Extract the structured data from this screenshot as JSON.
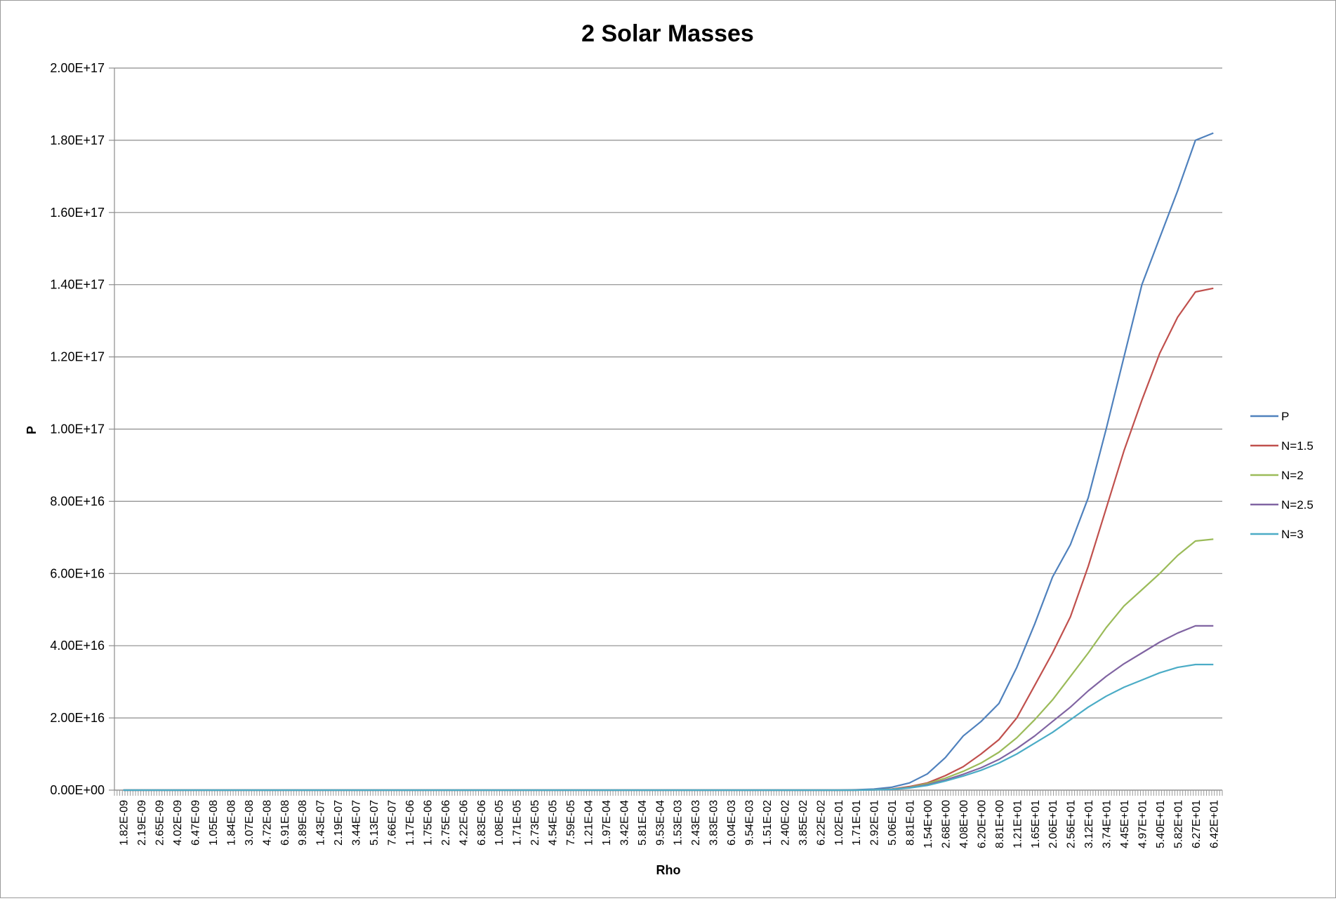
{
  "chart_data": {
    "type": "line",
    "title": "2 Solar Masses",
    "xlabel": "Rho",
    "ylabel": "P",
    "ylim": [
      0,
      2e+17
    ],
    "y_ticks": [
      0,
      2e+16,
      4e+16,
      6e+16,
      8e+16,
      1e+17,
      1.2e+17,
      1.4e+17,
      1.6e+17,
      1.8e+17,
      2e+17
    ],
    "y_tick_labels": [
      "0.00E+00",
      "2.00E+16",
      "4.00E+16",
      "6.00E+16",
      "8.00E+16",
      "1.00E+17",
      "1.20E+17",
      "1.40E+17",
      "1.60E+17",
      "1.80E+17",
      "2.00E+17"
    ],
    "categories": [
      "1.82E-09",
      "2.19E-09",
      "2.65E-09",
      "4.02E-09",
      "6.47E-09",
      "1.05E-08",
      "1.84E-08",
      "3.07E-08",
      "4.72E-08",
      "6.91E-08",
      "9.89E-08",
      "1.43E-07",
      "2.19E-07",
      "3.44E-07",
      "5.13E-07",
      "7.66E-07",
      "1.17E-06",
      "1.75E-06",
      "2.75E-06",
      "4.22E-06",
      "6.83E-06",
      "1.08E-05",
      "1.71E-05",
      "2.73E-05",
      "4.54E-05",
      "7.59E-05",
      "1.21E-04",
      "1.97E-04",
      "3.42E-04",
      "5.81E-04",
      "9.53E-04",
      "1.53E-03",
      "2.43E-03",
      "3.83E-03",
      "6.04E-03",
      "9.54E-03",
      "1.51E-02",
      "2.40E-02",
      "3.85E-02",
      "6.22E-02",
      "1.02E-01",
      "1.71E-01",
      "2.92E-01",
      "5.06E-01",
      "8.81E-01",
      "1.54E+00",
      "2.68E+00",
      "4.08E+00",
      "6.20E+00",
      "8.81E+00",
      "1.21E+01",
      "1.65E+01",
      "2.06E+01",
      "2.56E+01",
      "3.12E+01",
      "3.74E+01",
      "4.45E+01",
      "4.97E+01",
      "5.40E+01",
      "5.82E+01",
      "6.27E+01",
      "6.42E+01"
    ],
    "series": [
      {
        "name": "P",
        "color": "#4f81bd",
        "values": [
          0,
          0,
          0,
          0,
          0,
          0,
          0,
          0,
          0,
          0,
          0,
          0,
          0,
          0,
          0,
          0,
          0,
          0,
          0,
          0,
          0,
          0,
          0,
          0,
          0,
          0,
          0,
          0,
          0,
          0,
          0,
          0,
          0,
          0,
          0,
          0,
          0,
          0,
          0,
          0,
          0,
          100000000000000.0,
          300000000000000.0,
          800000000000000.0,
          2000000000000000.0,
          4500000000000000.0,
          9000000000000000.0,
          1.5e+16,
          1.9e+16,
          2.4e+16,
          3.4e+16,
          4.6e+16,
          5.9e+16,
          6.8e+16,
          8.1e+16,
          1e+17,
          1.2e+17,
          1.4e+17,
          1.53e+17,
          1.66e+17,
          1.8e+17,
          1.82e+17
        ]
      },
      {
        "name": "N=1.5",
        "color": "#c0504d",
        "values": [
          0,
          0,
          0,
          0,
          0,
          0,
          0,
          0,
          0,
          0,
          0,
          0,
          0,
          0,
          0,
          0,
          0,
          0,
          0,
          0,
          0,
          0,
          0,
          0,
          0,
          0,
          0,
          0,
          0,
          0,
          0,
          0,
          0,
          0,
          0,
          0,
          0,
          0,
          0,
          0,
          0,
          0,
          100000000000000.0,
          300000000000000.0,
          1000000000000000.0,
          2000000000000000.0,
          4000000000000000.0,
          6500000000000000.0,
          1e+16,
          1.4e+16,
          2e+16,
          2.9e+16,
          3.8e+16,
          4.8e+16,
          6.2e+16,
          7.8e+16,
          9.4e+16,
          1.08e+17,
          1.21e+17,
          1.31e+17,
          1.38e+17,
          1.39e+17
        ]
      },
      {
        "name": "N=2",
        "color": "#9bbb59",
        "values": [
          0,
          0,
          0,
          0,
          0,
          0,
          0,
          0,
          0,
          0,
          0,
          0,
          0,
          0,
          0,
          0,
          0,
          0,
          0,
          0,
          0,
          0,
          0,
          0,
          0,
          0,
          0,
          0,
          0,
          0,
          0,
          0,
          0,
          0,
          0,
          0,
          0,
          0,
          0,
          0,
          0,
          0,
          100000000000000.0,
          250000000000000.0,
          800000000000000.0,
          1800000000000000.0,
          3300000000000000.0,
          5200000000000000.0,
          7500000000000000.0,
          1.05e+16,
          1.45e+16,
          1.95e+16,
          2.5e+16,
          3.15e+16,
          3.8e+16,
          4.5e+16,
          5.1e+16,
          5.55e+16,
          6e+16,
          6.5e+16,
          6.9e+16,
          6.95e+16
        ]
      },
      {
        "name": "N=2.5",
        "color": "#8064a2",
        "values": [
          0,
          0,
          0,
          0,
          0,
          0,
          0,
          0,
          0,
          0,
          0,
          0,
          0,
          0,
          0,
          0,
          0,
          0,
          0,
          0,
          0,
          0,
          0,
          0,
          0,
          0,
          0,
          0,
          0,
          0,
          0,
          0,
          0,
          0,
          0,
          0,
          0,
          0,
          0,
          0,
          0,
          0,
          100000000000000.0,
          200000000000000.0,
          700000000000000.0,
          1500000000000000.0,
          2800000000000000.0,
          4400000000000000.0,
          6200000000000000.0,
          8500000000000000.0,
          1.15e+16,
          1.5e+16,
          1.9e+16,
          2.3e+16,
          2.75e+16,
          3.15e+16,
          3.5e+16,
          3.8e+16,
          4.1e+16,
          4.35e+16,
          4.55e+16,
          4.55e+16
        ]
      },
      {
        "name": "N=3",
        "color": "#4bacc6",
        "values": [
          0,
          0,
          0,
          0,
          0,
          0,
          0,
          0,
          0,
          0,
          0,
          0,
          0,
          0,
          0,
          0,
          0,
          0,
          0,
          0,
          0,
          0,
          0,
          0,
          0,
          0,
          0,
          0,
          0,
          0,
          0,
          0,
          0,
          0,
          0,
          0,
          0,
          0,
          0,
          0,
          0,
          0,
          100000000000000.0,
          200000000000000.0,
          600000000000000.0,
          1300000000000000.0,
          2500000000000000.0,
          3900000000000000.0,
          5500000000000000.0,
          7500000000000000.0,
          1e+16,
          1.3e+16,
          1.6e+16,
          1.95e+16,
          2.3e+16,
          2.6e+16,
          2.85e+16,
          3.05e+16,
          3.25e+16,
          3.4e+16,
          3.48e+16,
          3.48e+16
        ]
      }
    ],
    "grid": true,
    "legend_position": "right"
  }
}
